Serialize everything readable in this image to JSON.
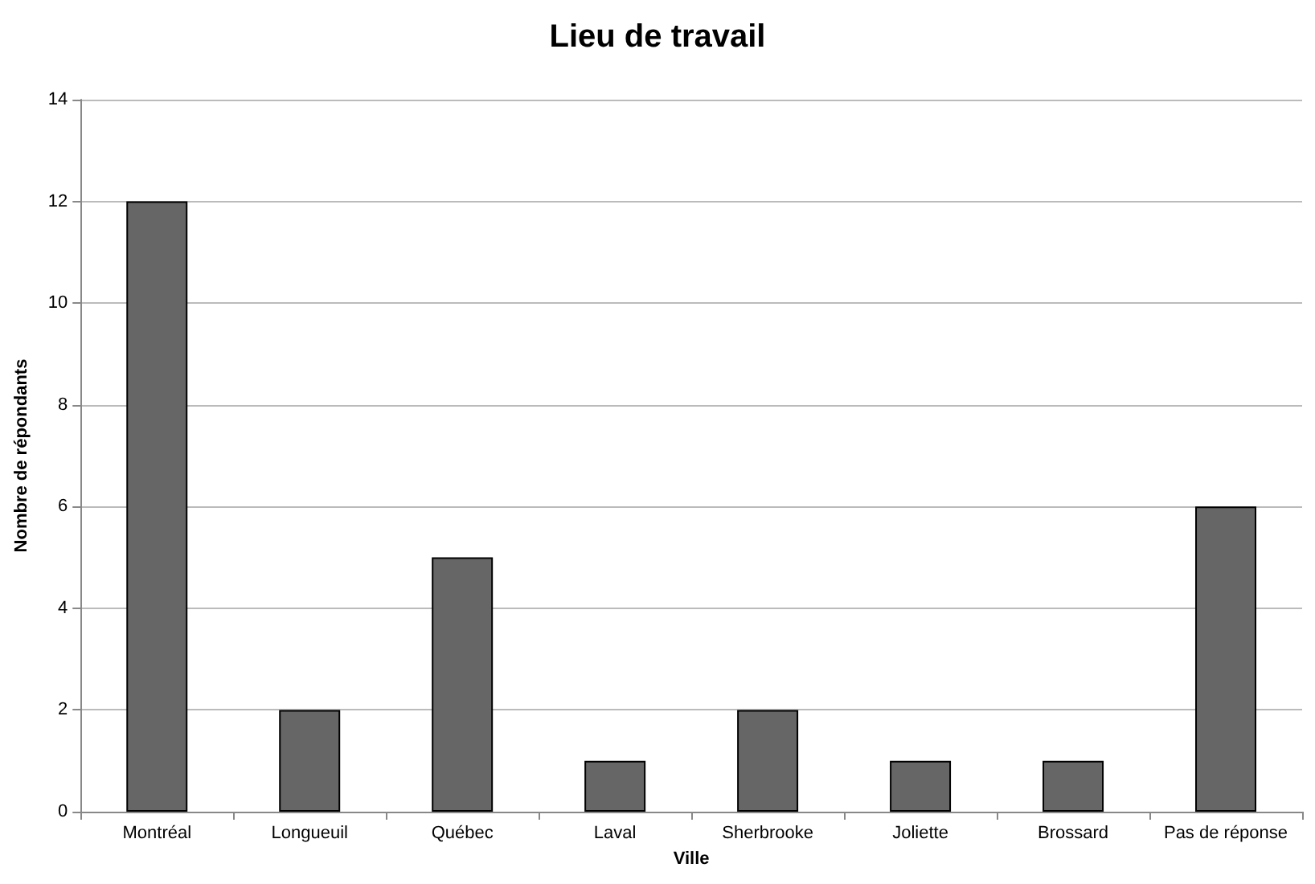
{
  "chart_data": {
    "type": "bar",
    "title": "Lieu de travail",
    "xlabel": "Ville",
    "ylabel": "Nombre de répondants",
    "categories": [
      "Montréal",
      "Longueuil",
      "Québec",
      "Laval",
      "Sherbrooke",
      "Joliette",
      "Brossard",
      "Pas de réponse"
    ],
    "values": [
      12,
      2,
      5,
      1,
      2,
      1,
      1,
      6
    ],
    "color": "#666666",
    "ylim": [
      0,
      14
    ],
    "yticks": [
      0,
      2,
      4,
      6,
      8,
      10,
      12,
      14
    ],
    "grid": "y"
  }
}
